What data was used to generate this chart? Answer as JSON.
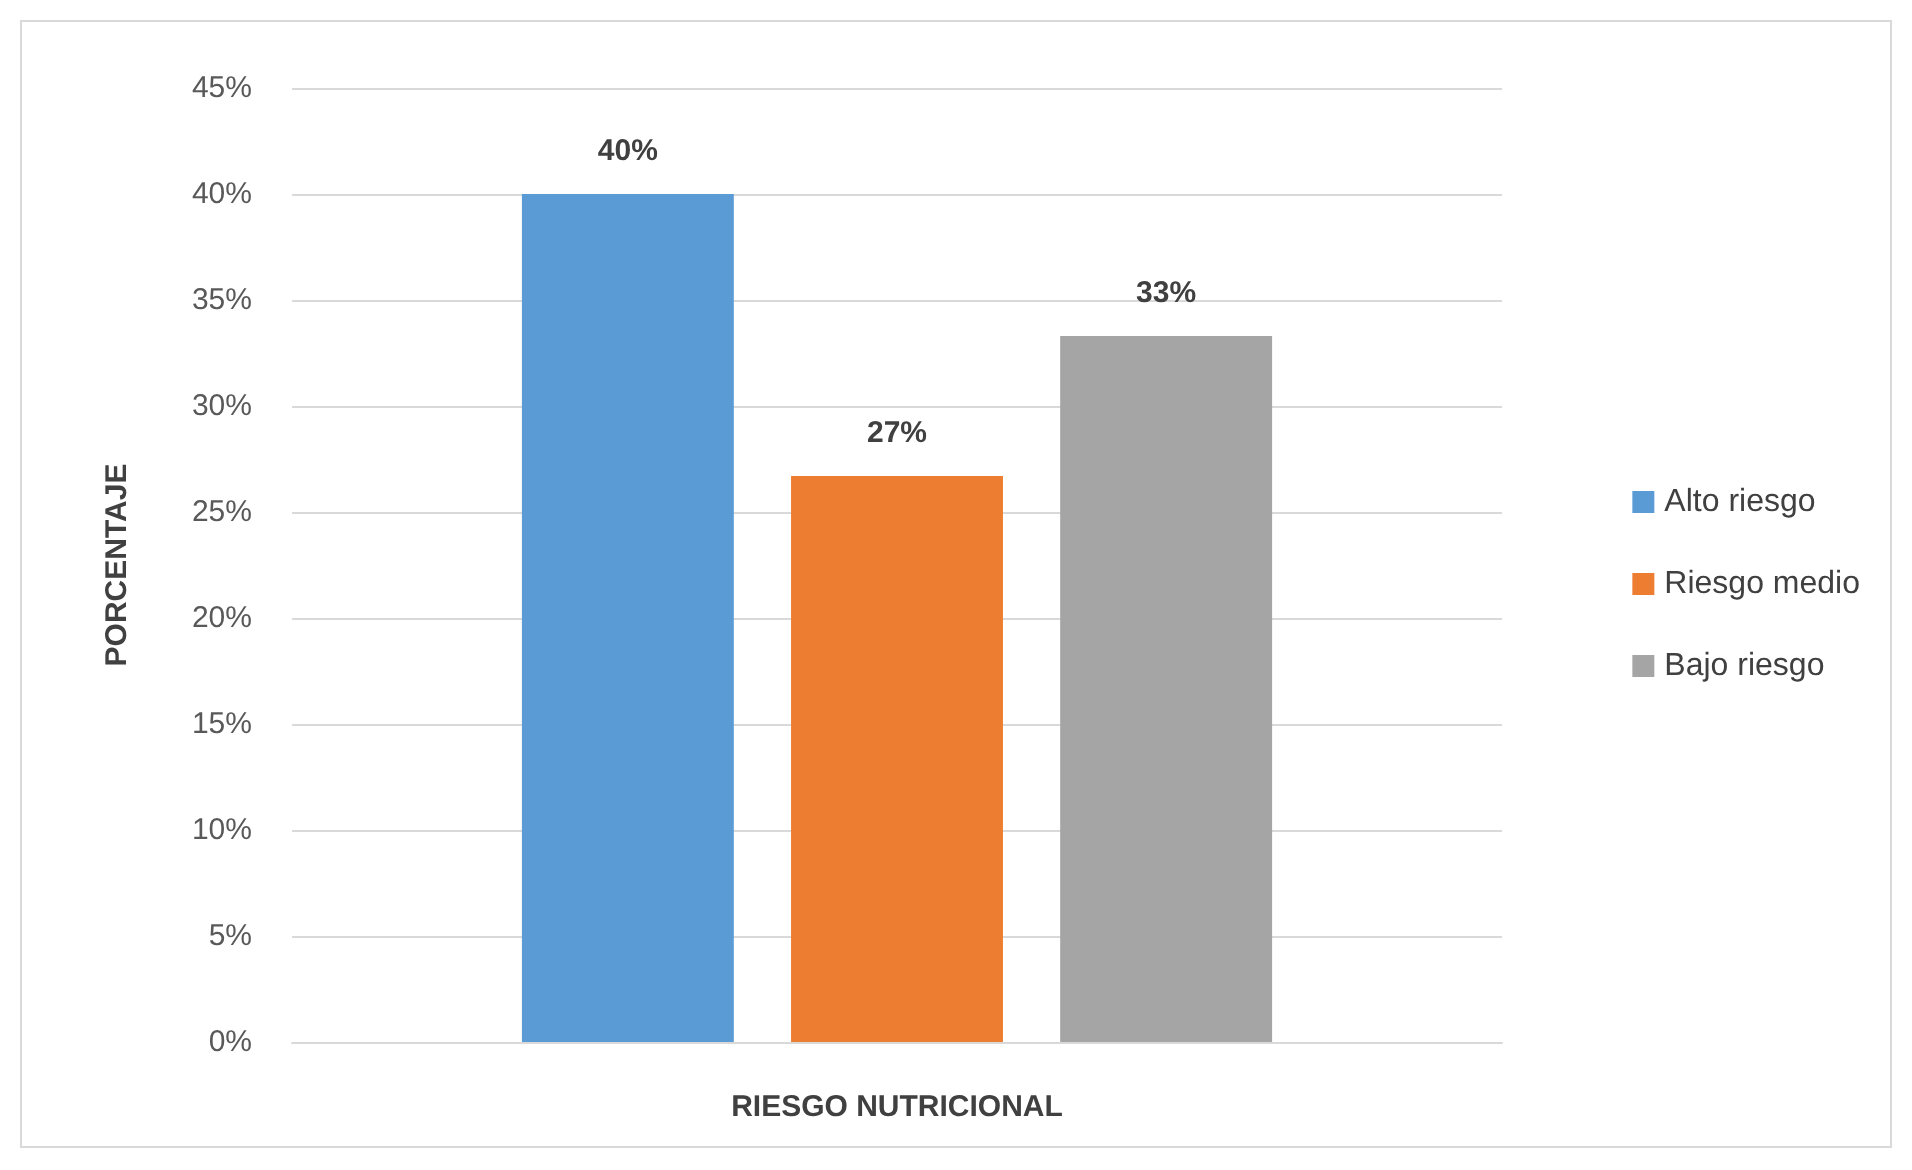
{
  "chart_data": {
    "type": "bar",
    "xlabel": "RIESGO NUTRICIONAL",
    "ylabel": "PORCENTAJE",
    "categories": [
      null
    ],
    "series": [
      {
        "name": "Alto riesgo",
        "color": "#5b9bd5",
        "values": [
          40
        ],
        "value_labels": [
          "40%"
        ]
      },
      {
        "name": "Riesgo medio",
        "color": "#ed7d31",
        "values": [
          26.7
        ],
        "value_labels": [
          "27%"
        ]
      },
      {
        "name": "Bajo riesgo",
        "color": "#a5a5a5",
        "values": [
          33.3
        ],
        "value_labels": [
          "33%"
        ]
      }
    ],
    "ylim": [
      0,
      45
    ],
    "yticks": [
      {
        "value": 0,
        "label": "0%"
      },
      {
        "value": 5,
        "label": "5%"
      },
      {
        "value": 10,
        "label": "10%"
      },
      {
        "value": 15,
        "label": "15%"
      },
      {
        "value": 20,
        "label": "20%"
      },
      {
        "value": 25,
        "label": "25%"
      },
      {
        "value": 30,
        "label": "30%"
      },
      {
        "value": 35,
        "label": "35%"
      },
      {
        "value": 40,
        "label": "40%"
      },
      {
        "value": 45,
        "label": "45%"
      }
    ],
    "grid": "y",
    "legend": "right"
  }
}
